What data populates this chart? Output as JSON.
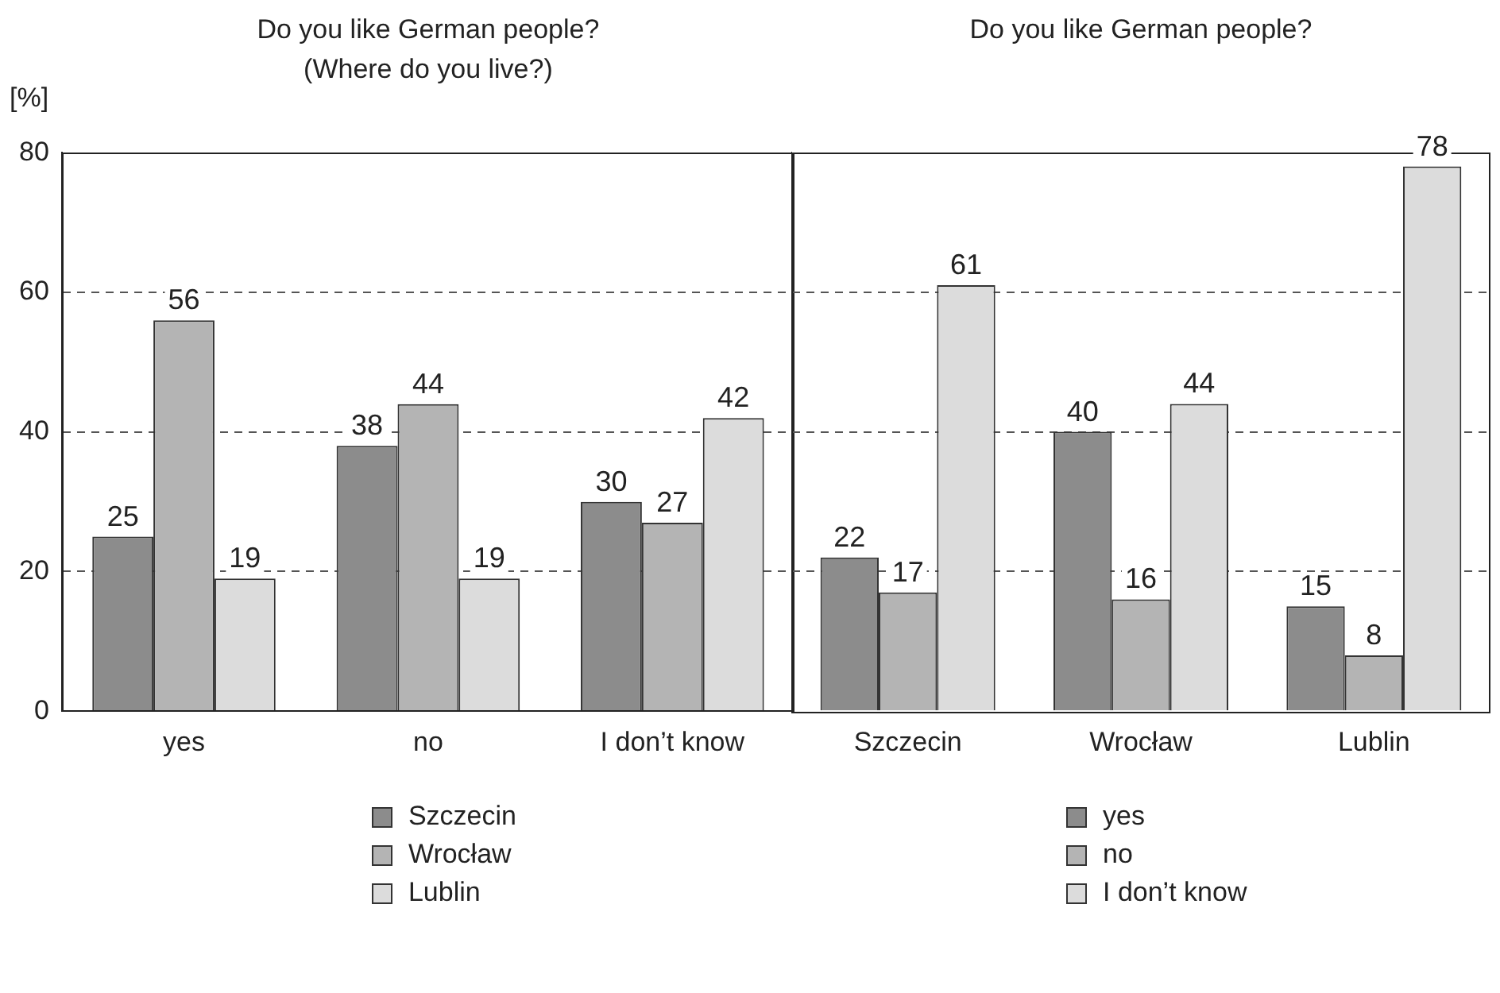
{
  "chart_data": [
    {
      "type": "bar",
      "title": "Do you like German people?\n(Where do you live?)",
      "ylabel": "[%]",
      "categories": [
        "yes",
        "no",
        "I don’t know"
      ],
      "series": [
        {
          "name": "Szczecin",
          "color": "#8c8c8c",
          "values": [
            25,
            38,
            30
          ]
        },
        {
          "name": "Wrocław",
          "color": "#b4b4b4",
          "values": [
            56,
            44,
            27
          ]
        },
        {
          "name": "Lublin",
          "color": "#dcdcdc",
          "values": [
            19,
            19,
            42
          ]
        }
      ],
      "ylim": [
        0,
        80
      ],
      "yticks": [
        0,
        20,
        40,
        60,
        80
      ],
      "grid": "y",
      "legend": "bottom",
      "data_labels": true
    },
    {
      "type": "bar",
      "title": "Do you like German people?",
      "categories": [
        "Szczecin",
        "Wrocław",
        "Lublin"
      ],
      "series": [
        {
          "name": "yes",
          "color": "#8c8c8c",
          "values": [
            22,
            40,
            15
          ]
        },
        {
          "name": "no",
          "color": "#b4b4b4",
          "values": [
            17,
            16,
            8
          ]
        },
        {
          "name": "I don’t know",
          "color": "#dcdcdc",
          "values": [
            61,
            44,
            78
          ]
        }
      ],
      "ylim": [
        0,
        80
      ],
      "yticks": [
        0,
        20,
        40,
        60,
        80
      ],
      "grid": "y",
      "legend": "bottom",
      "data_labels": true,
      "tick_labels": "x"
    }
  ]
}
